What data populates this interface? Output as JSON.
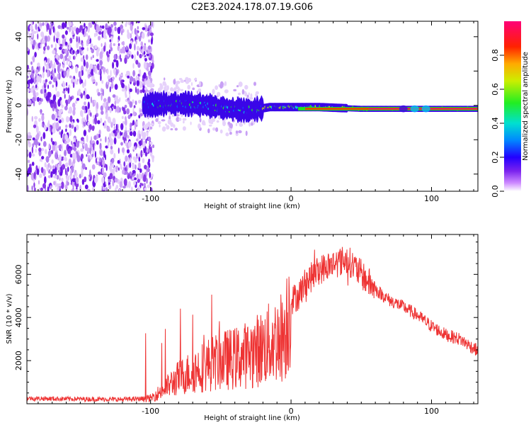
{
  "title": "C2E3.2024.178.07.19.G06",
  "chart_data": [
    {
      "type": "heatmap",
      "name": "spectrogram",
      "xlabel": "Height of straight line (km)",
      "ylabel": "Frequency (Hz)",
      "xlim": [
        -188,
        133
      ],
      "ylim": [
        -50,
        49
      ],
      "xticks": [
        -100,
        0,
        100
      ],
      "xtick_labels": [
        "-100",
        "0",
        "100"
      ],
      "yticks": [
        -40,
        -20,
        0,
        20,
        40
      ],
      "ytick_labels": [
        "-40",
        "-20",
        "0",
        "20",
        "40"
      ],
      "noise_region_x": [
        -188,
        -102
      ],
      "signal_band": [
        {
          "x": -105,
          "freq": 0
        },
        {
          "x": -90,
          "freq": 1
        },
        {
          "x": -75,
          "freq": 1
        },
        {
          "x": -60,
          "freq": 0
        },
        {
          "x": -45,
          "freq": -2
        },
        {
          "x": -30,
          "freq": -3
        },
        {
          "x": -15,
          "freq": -1
        },
        {
          "x": 0,
          "freq": -1
        },
        {
          "x": 20,
          "freq": -1
        },
        {
          "x": 50,
          "freq": -2
        },
        {
          "x": 80,
          "freq": -2
        },
        {
          "x": 133,
          "freq": -2
        }
      ],
      "colorbar": {
        "label": "Normalized spectral amplitude",
        "range": [
          0,
          1
        ],
        "ticks": [
          0.0,
          0.2,
          0.4,
          0.6,
          0.8
        ],
        "tick_labels": [
          "0.0",
          "0.2",
          "0.4",
          "0.6",
          "0.8"
        ]
      }
    },
    {
      "type": "line",
      "name": "snr",
      "xlabel": "Height of straight line (km)",
      "ylabel": "SNR (10 * v/v)",
      "xlim": [
        -188,
        133
      ],
      "ylim": [
        0,
        7850
      ],
      "xticks": [
        -100,
        0,
        100
      ],
      "xtick_labels": [
        "-100",
        "0",
        "100"
      ],
      "yticks": [
        2000,
        4000,
        6000
      ],
      "ytick_labels": [
        "2000",
        "4000",
        "6000"
      ],
      "color": "#ee3333",
      "series": [
        {
          "name": "SNR envelope",
          "x": [
            -188,
            -150,
            -120,
            -100,
            -90,
            -80,
            -70,
            -60,
            -50,
            -40,
            -30,
            -20,
            -10,
            -5,
            0,
            5,
            10,
            20,
            30,
            40,
            50,
            60,
            70,
            80,
            90,
            100,
            110,
            120,
            133
          ],
          "y": [
            250,
            220,
            200,
            250,
            700,
            1200,
            1500,
            1800,
            2000,
            2100,
            2300,
            2600,
            3000,
            3200,
            4800,
            5000,
            5600,
            6200,
            6500,
            6700,
            6000,
            5300,
            4800,
            4500,
            4100,
            3600,
            3200,
            3000,
            2450
          ]
        }
      ]
    }
  ]
}
